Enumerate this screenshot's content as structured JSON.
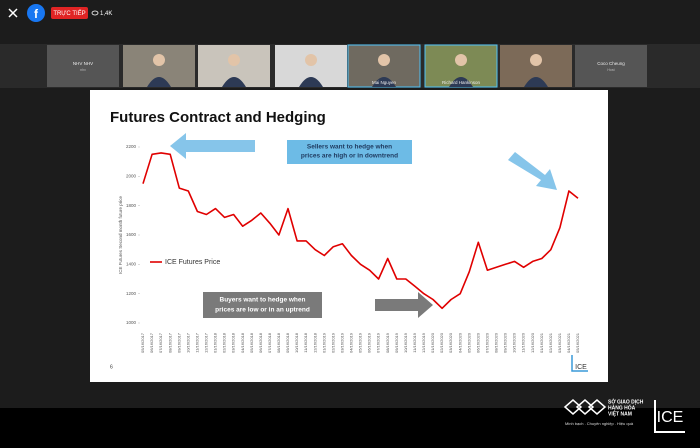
{
  "live_bar": {
    "badge": "TRỰC TIẾP",
    "viewers": "1,4K"
  },
  "tiles": [
    {
      "name": "NHV NHV",
      "subtitle": "nhv"
    },
    {
      "name": "Mai Nguyen"
    },
    {
      "name": "Richard Hankinson"
    },
    {
      "name": "Coco Cheung",
      "subtitle": "Host"
    }
  ],
  "slide": {
    "number": "6",
    "logo": "ICE",
    "callout_sellers": [
      "Sellers want  to hedge when",
      "prices are high or in downtrend"
    ],
    "callout_buyers": [
      "Buyers want to hedge when",
      "prices are low or in an uptrend"
    ]
  },
  "footer": {
    "brand": [
      "SỞ GIAO DỊCH",
      "HÀNG HÓA",
      "VIỆT NAM"
    ],
    "tagline": "Minh bạch . Chuyên nghiệp . Hiệu quả",
    "logo": "ICE"
  },
  "chart_data": {
    "type": "line",
    "title": "Futures Contract and Hedging",
    "y_label": "ICE Futures Second month future price",
    "categories": [
      "05/16/2017",
      "06/16/2017",
      "07/16/2017",
      "08/16/2017",
      "09/16/2017",
      "10/16/2017",
      "11/16/2017",
      "12/16/2017",
      "01/16/2018",
      "02/16/2018",
      "03/16/2018",
      "04/16/2018",
      "05/16/2018",
      "06/16/2018",
      "07/16/2018",
      "08/16/2018",
      "09/16/2018",
      "10/16/2018",
      "11/16/2018",
      "12/16/2018",
      "01/16/2019",
      "02/16/2019",
      "03/16/2019",
      "04/16/2019",
      "05/16/2019",
      "06/16/2019",
      "07/16/2019",
      "08/16/2019",
      "09/16/2019",
      "10/16/2019",
      "11/16/2019",
      "12/16/2019",
      "01/16/2020",
      "02/16/2020",
      "03/16/2020",
      "04/16/2020",
      "05/16/2020",
      "06/16/2020",
      "07/16/2020",
      "08/16/2020",
      "09/16/2020",
      "10/16/2020",
      "11/16/2020",
      "12/16/2020",
      "01/16/2021",
      "02/16/2021",
      "03/16/2021",
      "04/16/2021",
      "05/16/2021"
    ],
    "series": [
      {
        "name": "ICE Futures Price",
        "color": "#e00000",
        "values": [
          1950,
          2150,
          2160,
          2150,
          1920,
          1900,
          1760,
          1740,
          1780,
          1720,
          1740,
          1660,
          1700,
          1750,
          1680,
          1600,
          1780,
          1560,
          1560,
          1500,
          1460,
          1520,
          1540,
          1460,
          1400,
          1360,
          1300,
          1440,
          1300,
          1300,
          1250,
          1200,
          1160,
          1100,
          1160,
          1200,
          1350,
          1550,
          1360,
          1380,
          1400,
          1420,
          1380,
          1420,
          1440,
          1500,
          1650,
          1900,
          1850
        ]
      }
    ],
    "ylim": [
      1000,
      2200
    ],
    "yticks": [
      1000,
      1200,
      1400,
      1600,
      1800,
      2000,
      2200
    ],
    "grid": false
  }
}
